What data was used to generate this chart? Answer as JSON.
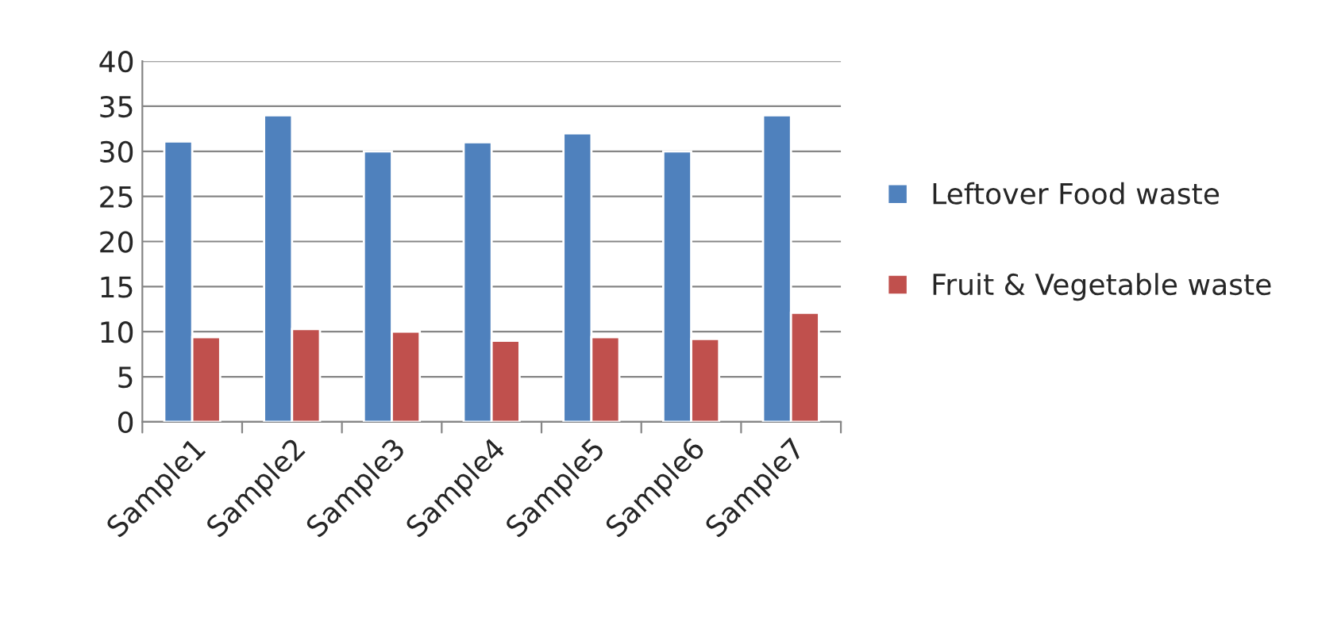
{
  "chart_data": {
    "type": "bar",
    "categories": [
      "Sample1",
      "Sample2",
      "Sample3",
      "Sample4",
      "Sample5",
      "Sample6",
      "Sample7"
    ],
    "series": [
      {
        "name": "Leftover Food waste",
        "color": "#4f81bd",
        "values": [
          31.1,
          34,
          30,
          31,
          32,
          30,
          34
        ]
      },
      {
        "name": "Fruit & Vegetable waste",
        "color": "#c0504d",
        "values": [
          9.4,
          10.3,
          10,
          9,
          9.4,
          9.2,
          12.1
        ]
      }
    ],
    "ylim": [
      0,
      40
    ],
    "yticks": [
      0,
      5,
      10,
      15,
      20,
      25,
      30,
      35,
      40
    ],
    "grid": "y",
    "legend": "right"
  }
}
